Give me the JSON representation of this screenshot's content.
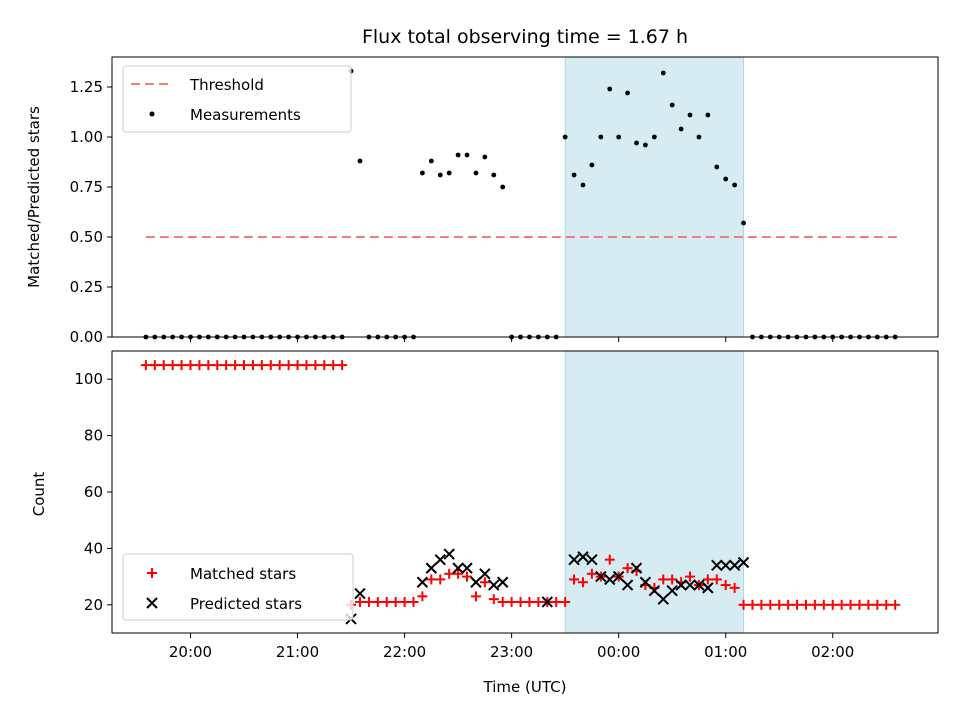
{
  "chart_data": [
    {
      "type": "scatter",
      "title": "Flux total observing time = 1.67 h",
      "xlabel": "",
      "ylabel": "Matched/Predicted stars",
      "ylim": [
        0,
        1.4
      ],
      "yticks": [
        0.0,
        0.25,
        0.5,
        0.75,
        1.0,
        1.25
      ],
      "ytick_labels": [
        "0.00",
        "0.25",
        "0.50",
        "0.75",
        "1.00",
        "1.25"
      ],
      "xlim": [
        "19:16",
        "02:59"
      ],
      "xticks": [
        "20:00",
        "21:00",
        "22:00",
        "23:00",
        "00:00",
        "01:00",
        "02:00"
      ],
      "shaded_region": {
        "start": "23:30",
        "end": "01:10",
        "color": "#add8e6"
      },
      "legend": {
        "placement": "top-left",
        "entries": [
          "Threshold",
          "Measurements"
        ]
      },
      "series": [
        {
          "name": "Threshold",
          "kind": "dashed-line",
          "color": "#f08080",
          "x": [
            "19:35",
            "02:36"
          ],
          "y": [
            0.5,
            0.5
          ]
        },
        {
          "name": "Measurements",
          "kind": "points",
          "color": "#000000",
          "x": [
            "19:35",
            "19:40",
            "19:45",
            "19:50",
            "19:55",
            "20:00",
            "20:05",
            "20:10",
            "20:15",
            "20:20",
            "20:25",
            "20:30",
            "20:35",
            "20:40",
            "20:45",
            "20:50",
            "20:55",
            "21:00",
            "21:05",
            "21:10",
            "21:15",
            "21:20",
            "21:25",
            "21:30",
            "21:35",
            "21:40",
            "21:45",
            "21:50",
            "21:55",
            "22:00",
            "22:05",
            "22:10",
            "22:15",
            "22:20",
            "22:25",
            "22:30",
            "22:35",
            "22:40",
            "22:45",
            "22:50",
            "22:55",
            "23:00",
            "23:05",
            "23:10",
            "23:15",
            "23:20",
            "23:25",
            "23:30",
            "23:35",
            "23:40",
            "23:45",
            "23:50",
            "23:55",
            "00:00",
            "00:05",
            "00:10",
            "00:15",
            "00:20",
            "00:25",
            "00:30",
            "00:35",
            "00:40",
            "00:45",
            "00:50",
            "00:55",
            "01:00",
            "01:05",
            "01:10",
            "01:15",
            "01:20",
            "01:25",
            "01:30",
            "01:35",
            "01:40",
            "01:45",
            "01:50",
            "01:55",
            "02:00",
            "02:05",
            "02:10",
            "02:15",
            "02:20",
            "02:25",
            "02:30",
            "02:35"
          ],
          "y": [
            0,
            0,
            0,
            0,
            0,
            0,
            0,
            0,
            0,
            0,
            0,
            0,
            0,
            0,
            0,
            0,
            0,
            0,
            0,
            0,
            0,
            0,
            0,
            1.33,
            0.88,
            0,
            0,
            0,
            0,
            0,
            0,
            0.82,
            0.88,
            0.81,
            0.82,
            0.91,
            0.91,
            0.82,
            0.9,
            0.81,
            0.75,
            0,
            0,
            0,
            0,
            0,
            0,
            1.0,
            0.81,
            0.76,
            0.86,
            1.0,
            1.24,
            1.0,
            1.22,
            0.97,
            0.96,
            1.0,
            1.32,
            1.16,
            1.04,
            1.11,
            1.0,
            1.11,
            0.85,
            0.79,
            0.76,
            0.57,
            0,
            0,
            0,
            0,
            0,
            0,
            0,
            0,
            0,
            0,
            0,
            0,
            0,
            0,
            0,
            0,
            0
          ]
        }
      ]
    },
    {
      "type": "scatter",
      "title": "",
      "xlabel": "Time (UTC)",
      "ylabel": "Count",
      "ylim": [
        10,
        110
      ],
      "yticks": [
        20,
        40,
        60,
        80,
        100
      ],
      "ytick_labels": [
        "20",
        "40",
        "60",
        "80",
        "100"
      ],
      "xlim": [
        "19:16",
        "02:59"
      ],
      "xticks": [
        "20:00",
        "21:00",
        "22:00",
        "23:00",
        "00:00",
        "01:00",
        "02:00"
      ],
      "shaded_region": {
        "start": "23:30",
        "end": "01:10",
        "color": "#add8e6"
      },
      "legend": {
        "placement": "bottom-left",
        "entries": [
          "Matched stars",
          "Predicted stars"
        ]
      },
      "series": [
        {
          "name": "Matched stars",
          "marker": "plus",
          "color": "#ff0000",
          "x": [
            "19:35",
            "19:40",
            "19:45",
            "19:50",
            "19:55",
            "20:00",
            "20:05",
            "20:10",
            "20:15",
            "20:20",
            "20:25",
            "20:30",
            "20:35",
            "20:40",
            "20:45",
            "20:50",
            "20:55",
            "21:00",
            "21:05",
            "21:10",
            "21:15",
            "21:20",
            "21:25",
            "21:30",
            "21:35",
            "21:40",
            "21:45",
            "21:50",
            "21:55",
            "22:00",
            "22:05",
            "22:10",
            "22:15",
            "22:20",
            "22:25",
            "22:30",
            "22:35",
            "22:40",
            "22:45",
            "22:50",
            "22:55",
            "23:00",
            "23:05",
            "23:10",
            "23:15",
            "23:20",
            "23:25",
            "23:30",
            "23:35",
            "23:40",
            "23:45",
            "23:50",
            "23:55",
            "00:00",
            "00:05",
            "00:10",
            "00:15",
            "00:20",
            "00:25",
            "00:30",
            "00:35",
            "00:40",
            "00:45",
            "00:50",
            "00:55",
            "01:00",
            "01:05",
            "01:10",
            "01:15",
            "01:20",
            "01:25",
            "01:30",
            "01:35",
            "01:40",
            "01:45",
            "01:50",
            "01:55",
            "02:00",
            "02:05",
            "02:10",
            "02:15",
            "02:20",
            "02:25",
            "02:30",
            "02:35"
          ],
          "y": [
            105,
            105,
            105,
            105,
            105,
            105,
            105,
            105,
            105,
            105,
            105,
            105,
            105,
            105,
            105,
            105,
            105,
            105,
            105,
            105,
            105,
            105,
            105,
            20,
            21,
            21,
            21,
            21,
            21,
            21,
            21,
            23,
            29,
            29,
            31,
            31,
            30,
            23,
            28,
            22,
            21,
            21,
            21,
            21,
            21,
            21,
            21,
            21,
            29,
            28,
            31,
            30,
            36,
            30,
            33,
            32,
            27,
            26,
            29,
            29,
            28,
            30,
            27,
            29,
            29,
            27,
            26,
            20,
            20,
            20,
            20,
            20,
            20,
            20,
            20,
            20,
            20,
            20,
            20,
            20,
            20,
            20,
            20,
            20,
            20
          ]
        },
        {
          "name": "Predicted stars",
          "marker": "x",
          "color": "#000000",
          "x": [
            "21:30",
            "21:35",
            "22:10",
            "22:15",
            "22:20",
            "22:25",
            "22:30",
            "22:35",
            "22:40",
            "22:45",
            "22:50",
            "22:55",
            "23:20",
            "23:35",
            "23:40",
            "23:45",
            "23:50",
            "23:55",
            "00:00",
            "00:05",
            "00:10",
            "00:15",
            "00:20",
            "00:25",
            "00:30",
            "00:35",
            "00:40",
            "00:45",
            "00:50",
            "00:55",
            "01:00",
            "01:05",
            "01:10"
          ],
          "y": [
            15,
            24,
            28,
            33,
            36,
            38,
            33,
            33,
            28,
            31,
            27,
            28,
            21,
            36,
            37,
            36,
            30,
            29,
            30,
            27,
            33,
            28,
            25,
            22,
            25,
            27,
            27,
            27,
            26,
            34,
            34,
            34,
            35
          ]
        }
      ]
    }
  ]
}
